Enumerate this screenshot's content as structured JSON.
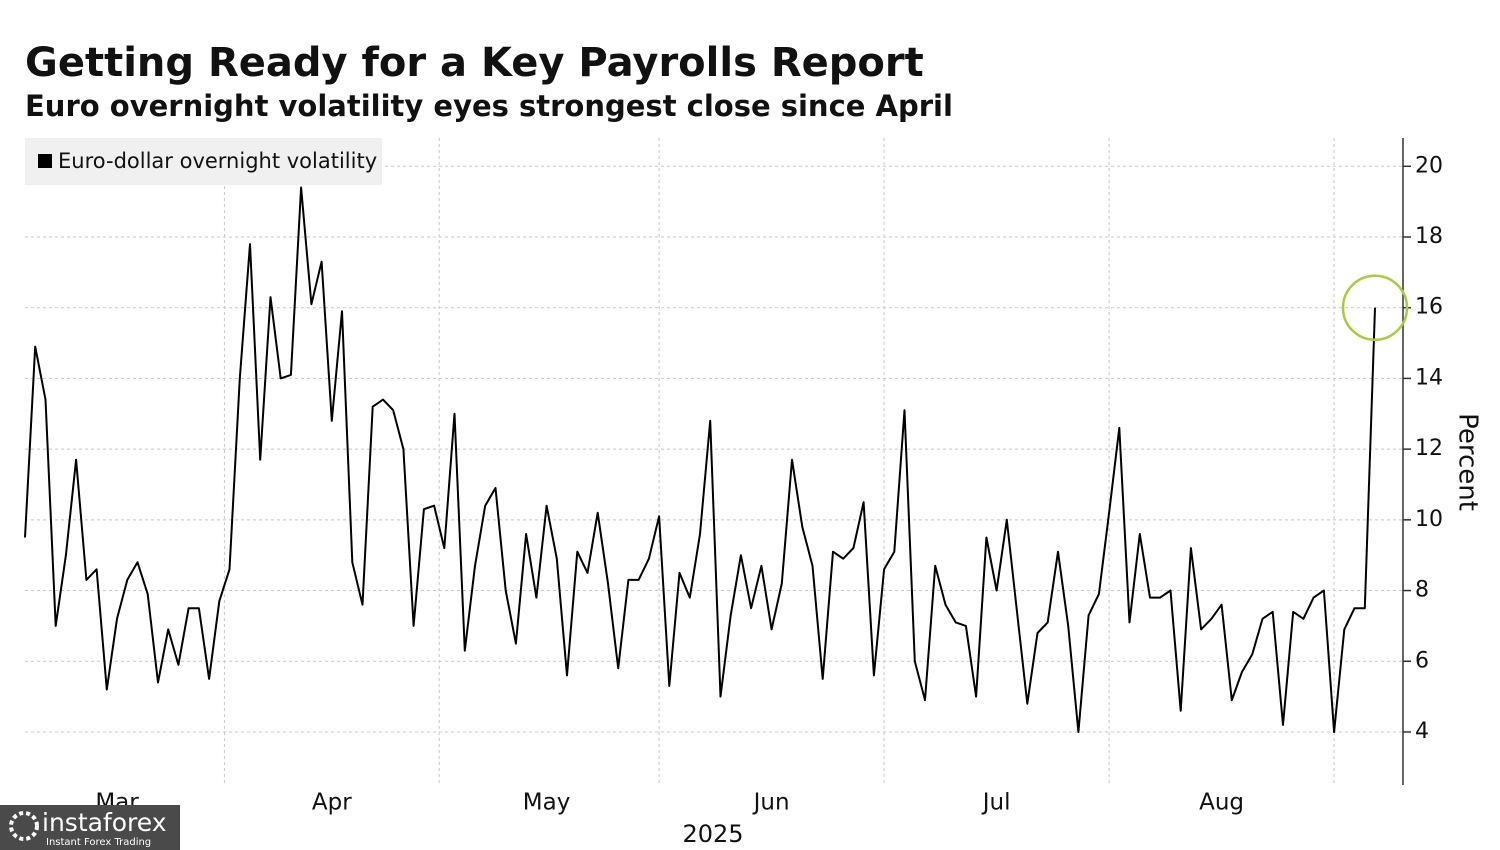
{
  "chart_data": {
    "type": "line",
    "title": "Getting Ready for a Key Payrolls Report",
    "subtitle": "Euro overnight volatility eyes strongest close since April",
    "xlabel": "2025",
    "ylabel": "Percent",
    "categories": [
      null,
      null,
      null,
      null,
      null,
      null,
      null,
      null,
      null,
      "Mar",
      null,
      null,
      null,
      null,
      null,
      null,
      null,
      null,
      null,
      null,
      null,
      null,
      null,
      null,
      null,
      null,
      null,
      null,
      null,
      null,
      "Apr",
      null,
      null,
      null,
      null,
      null,
      null,
      null,
      null,
      null,
      null,
      null,
      null,
      null,
      null,
      null,
      null,
      null,
      null,
      null,
      null,
      "May",
      null,
      null,
      null,
      null,
      null,
      null,
      null,
      null,
      null,
      null,
      null,
      null,
      null,
      null,
      null,
      null,
      null,
      null,
      null,
      null,
      null,
      "Jun",
      null,
      null,
      null,
      null,
      null,
      null,
      null,
      null,
      null,
      null,
      null,
      null,
      null,
      null,
      null,
      null,
      null,
      null,
      null,
      null,
      null,
      "Jul",
      null,
      null,
      null,
      null,
      null,
      null,
      null,
      null,
      null,
      null,
      null,
      null,
      null,
      null,
      null,
      null,
      null,
      null,
      null,
      null,
      null,
      "Aug",
      null,
      null,
      null,
      null,
      null,
      null,
      null,
      null,
      null,
      null,
      null,
      null,
      null,
      null,
      null
    ],
    "series": [
      {
        "name": "Euro-dollar overnight volatility",
        "color": "#000000",
        "values": [
          9.5,
          14.9,
          13.4,
          7.0,
          9.0,
          11.7,
          8.3,
          8.6,
          5.2,
          7.2,
          8.3,
          8.8,
          7.9,
          5.4,
          6.9,
          5.9,
          7.5,
          7.5,
          5.5,
          7.7,
          8.6,
          14.0,
          17.8,
          11.7,
          16.3,
          14.0,
          14.1,
          19.4,
          16.1,
          17.3,
          12.8,
          15.9,
          8.8,
          7.6,
          13.2,
          13.4,
          13.1,
          12.0,
          7.0,
          10.3,
          10.4,
          9.2,
          13.0,
          6.3,
          8.7,
          10.4,
          10.9,
          8.0,
          6.5,
          9.6,
          7.8,
          10.4,
          8.9,
          5.6,
          9.1,
          8.5,
          10.2,
          8.2,
          5.8,
          8.3,
          8.3,
          8.9,
          10.1,
          5.3,
          8.5,
          7.8,
          9.6,
          12.8,
          5.0,
          7.3,
          9.0,
          7.5,
          8.7,
          6.9,
          8.2,
          11.7,
          9.8,
          8.7,
          5.5,
          9.1,
          8.9,
          9.2,
          10.5,
          5.6,
          8.6,
          9.1,
          13.1,
          6.0,
          4.9,
          8.7,
          7.6,
          7.1,
          7.0,
          5.0,
          9.5,
          8.0,
          10.0,
          7.4,
          4.8,
          6.8,
          7.1,
          9.1,
          7.0,
          4.0,
          7.3,
          7.9,
          10.2,
          12.6,
          7.1,
          9.6,
          7.8,
          7.8,
          8.0,
          4.6,
          9.2,
          6.9,
          7.2,
          7.6,
          4.9,
          5.7,
          6.2,
          7.2,
          7.4,
          4.2,
          7.4,
          7.2,
          7.8,
          8.0,
          4.0,
          6.9,
          7.5,
          7.5,
          16.0
        ]
      }
    ],
    "ylim": [
      2.5,
      20.8
    ],
    "yticks": [
      4,
      6,
      8,
      10,
      12,
      14,
      16,
      18,
      20
    ],
    "grid": true,
    "legend": "top-left"
  },
  "watermark": {
    "brand": "instaforex",
    "tagline": "Instant Forex Trading"
  }
}
